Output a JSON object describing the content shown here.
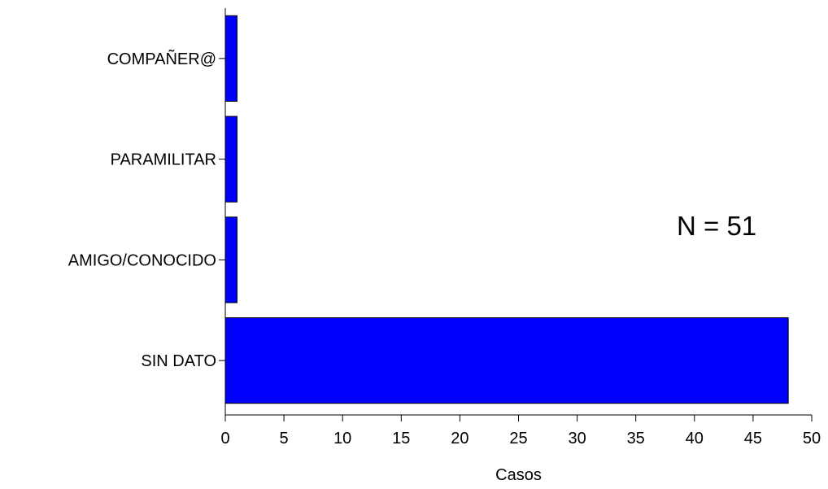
{
  "chart_data": {
    "type": "bar",
    "orientation": "horizontal",
    "categories": [
      "COMPAÑER@",
      "PARAMILITAR",
      "AMIGO/CONOCIDO",
      "SIN DATO"
    ],
    "values": [
      1,
      1,
      1,
      48
    ],
    "xlabel": "Casos",
    "ylabel": "",
    "xlim": [
      0,
      50
    ],
    "xticks": [
      0,
      5,
      10,
      15,
      20,
      25,
      30,
      35,
      40,
      45,
      50
    ],
    "grid": false,
    "legend": "none",
    "bar_color": "#0000FF",
    "annotation": "N = 51"
  }
}
